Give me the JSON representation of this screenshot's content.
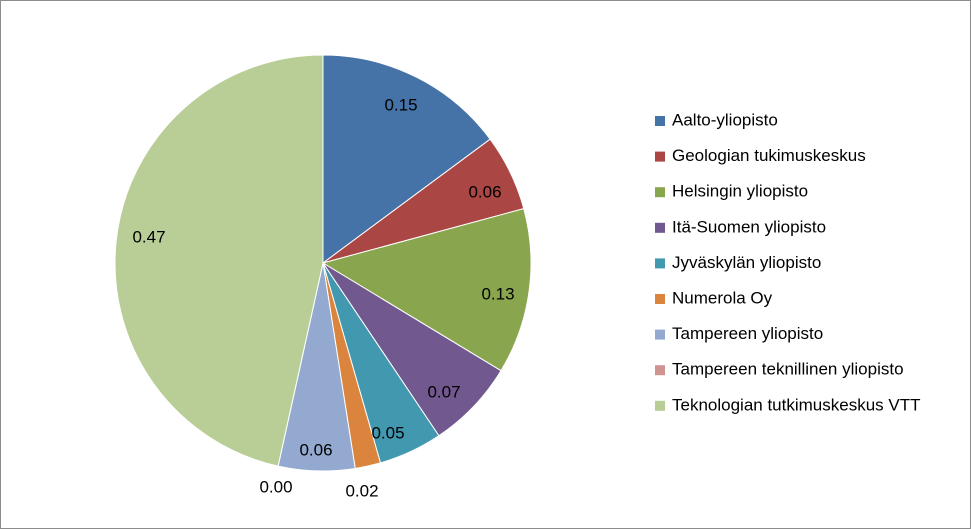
{
  "chart_data": {
    "type": "pie",
    "title": "",
    "legend_position": "right",
    "slices": [
      {
        "name": "Aalto-yliopisto",
        "value": 0.15,
        "label": "0.15",
        "color": "#4572A7"
      },
      {
        "name": "Geologian tukimuskeskus",
        "value": 0.06,
        "label": "0.06",
        "color": "#AA4643"
      },
      {
        "name": "Helsingin yliopisto",
        "value": 0.13,
        "label": "0.13",
        "color": "#89A54E"
      },
      {
        "name": "Itä-Suomen yliopisto",
        "value": 0.07,
        "label": "0.07",
        "color": "#71588F"
      },
      {
        "name": "Jyväskylän yliopisto",
        "value": 0.05,
        "label": "0.05",
        "color": "#4198AF"
      },
      {
        "name": "Numerola Oy",
        "value": 0.02,
        "label": "0.02",
        "color": "#DB843D"
      },
      {
        "name": "Tampereen yliopisto",
        "value": 0.06,
        "label": "0.06",
        "color": "#93A9CF"
      },
      {
        "name": "Tampereen teknillinen yliopisto",
        "value": 0.0,
        "label": "0.00",
        "color": "#D19392"
      },
      {
        "name": "Teknologian tutkimuskeskus VTT",
        "value": 0.47,
        "label": "0.47",
        "color": "#B9CD96"
      }
    ]
  }
}
